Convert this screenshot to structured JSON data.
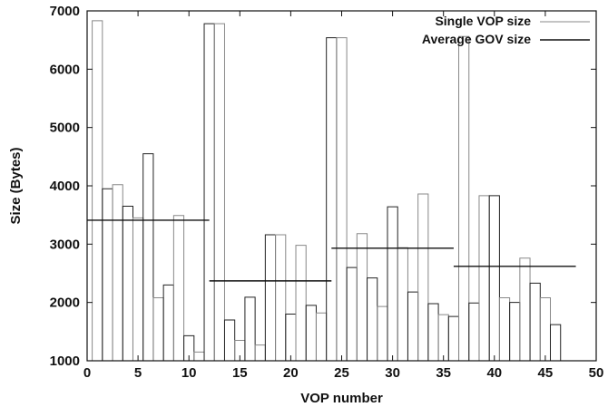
{
  "chart_data": {
    "type": "bar",
    "xlabel": "VOP number",
    "ylabel": "Size (Bytes)",
    "xlim": [
      0,
      50
    ],
    "ylim": [
      1000,
      7000
    ],
    "x_ticks": [
      0,
      5,
      10,
      15,
      20,
      25,
      30,
      35,
      40,
      45,
      50
    ],
    "y_ticks": [
      1000,
      2000,
      3000,
      4000,
      5000,
      6000,
      7000
    ],
    "grid": false,
    "legend_position": "top-right",
    "legend": [
      {
        "label": "Single VOP size",
        "color": "#888888"
      },
      {
        "label": "Average GOV size",
        "color": "#111111"
      }
    ],
    "series": [
      {
        "name": "Single VOP size",
        "x": [
          1,
          2,
          3,
          4,
          5,
          6,
          7,
          8,
          9,
          10,
          11,
          12,
          13,
          14,
          15,
          16,
          17,
          18,
          19,
          20,
          21,
          22,
          23,
          24,
          25,
          26,
          27,
          28,
          29,
          30,
          31,
          32,
          33,
          34,
          35,
          36,
          37,
          38,
          39,
          40,
          41,
          42,
          43,
          44,
          45,
          46,
          47
        ],
        "values": [
          6830,
          3950,
          4020,
          3650,
          3450,
          4550,
          2080,
          2300,
          3490,
          1430,
          1150,
          6780,
          6780,
          1700,
          1350,
          2090,
          1270,
          3160,
          3160,
          1800,
          2980,
          1950,
          1820,
          6540,
          6540,
          2600,
          3180,
          2420,
          1930,
          3640,
          2940,
          2180,
          3860,
          1980,
          1790,
          1760,
          6560,
          1990,
          3830,
          3830,
          2080,
          2000,
          2760,
          2330,
          2080,
          1620,
          1000
        ]
      },
      {
        "name": "Average GOV size",
        "segments": [
          {
            "x_start": 0,
            "x_end": 12,
            "value": 3410
          },
          {
            "x_start": 12,
            "x_end": 24,
            "value": 2370
          },
          {
            "x_start": 24,
            "x_end": 36,
            "value": 2930
          },
          {
            "x_start": 36,
            "x_end": 48,
            "value": 2620
          }
        ]
      }
    ]
  }
}
